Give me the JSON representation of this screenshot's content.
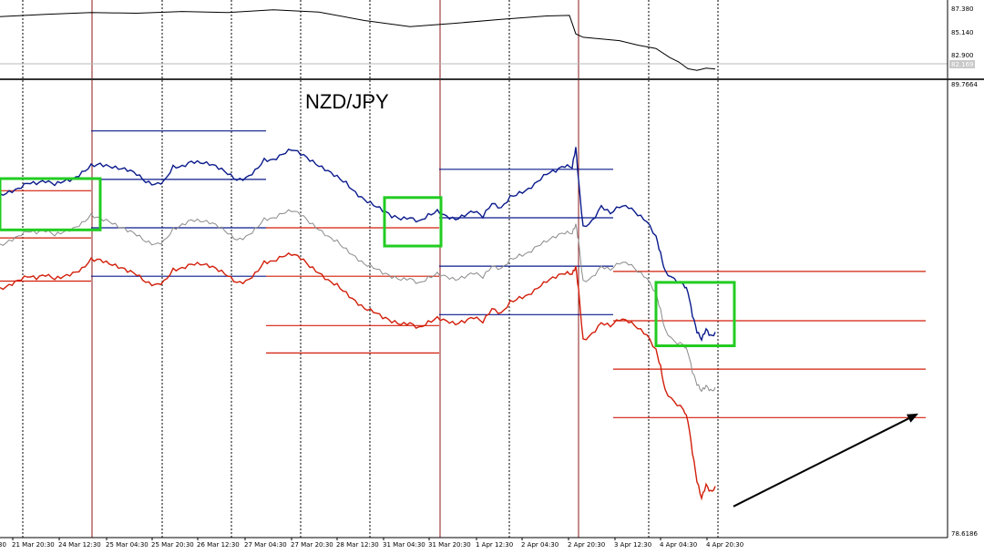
{
  "chart_data": {
    "type": "line",
    "title": "NZD/JPY",
    "colors": {
      "blue": "#0a1a8c",
      "red": "#d21e0a",
      "gray": "#8a8a8a",
      "green_box": "#22cc22",
      "upper_panel_line": "#000000",
      "vline_session": "#8b1a1a"
    },
    "upper_panel": {
      "y_ticks": [
        "87.380",
        "85.140",
        "82.900"
      ],
      "current_label": "82.169",
      "ylim": [
        81.5,
        88.0
      ]
    },
    "main_panel": {
      "y_ticks": [
        "89.7664",
        "78.6186"
      ],
      "ylim": [
        78.6186,
        89.7664
      ]
    },
    "x_tick_labels": [
      "30",
      "21 Mar 20:30",
      "24 Mar 12:30",
      "25 Mar 04:30",
      "25 Mar 20:30",
      "26 Mar 12:30",
      "27 Mar 04:30",
      "27 Mar 20:30",
      "28 Mar 12:30",
      "31 Mar 04:30",
      "31 Mar 20:30",
      "1 Apr 12:30",
      "2 Apr 04:30",
      "2 Apr 20:30",
      "3 Apr 12:30",
      "4 Apr 04:30",
      "4 Apr 20:30"
    ],
    "series": [
      {
        "key": "blue",
        "x": [
          0,
          10,
          20,
          30,
          40,
          50,
          60,
          70,
          80,
          90,
          100,
          110,
          120,
          130,
          140,
          150,
          160,
          170,
          180,
          190,
          200,
          210,
          220,
          230,
          240,
          250,
          260,
          270,
          280,
          290,
          300,
          310,
          320,
          330,
          340,
          350,
          360,
          370,
          380,
          390,
          400,
          410,
          420,
          430,
          440,
          450,
          460,
          470,
          480,
          490,
          500,
          510,
          520,
          530,
          540,
          550,
          560,
          570,
          580,
          590,
          600,
          610,
          620,
          628,
          632,
          635,
          640,
          650,
          660,
          670,
          680,
          690,
          700,
          710,
          720,
          725,
          730,
          740,
          750,
          755,
          760,
          765,
          770,
          775,
          780,
          785
        ],
        "y": [
          87.05,
          87.12,
          87.18,
          87.3,
          87.27,
          87.32,
          87.25,
          87.35,
          87.42,
          87.6,
          87.78,
          87.8,
          87.72,
          87.65,
          87.6,
          87.5,
          87.32,
          87.28,
          87.38,
          87.75,
          87.75,
          87.85,
          87.8,
          87.75,
          87.65,
          87.52,
          87.38,
          87.45,
          87.65,
          87.92,
          87.9,
          88.02,
          88.12,
          88.0,
          87.85,
          87.72,
          87.62,
          87.5,
          87.35,
          87.1,
          86.9,
          86.75,
          86.6,
          86.45,
          86.4,
          86.45,
          86.38,
          86.55,
          86.65,
          86.5,
          86.4,
          86.48,
          86.58,
          86.45,
          86.8,
          86.7,
          87.0,
          87.1,
          87.18,
          87.35,
          87.52,
          87.58,
          87.7,
          87.68,
          88.2,
          87.4,
          86.25,
          86.4,
          86.75,
          86.55,
          86.7,
          86.68,
          86.5,
          86.35,
          86.0,
          85.6,
          85.15,
          84.95,
          84.8,
          84.6,
          84.0,
          83.6,
          83.42,
          83.7,
          83.55,
          83.62
        ]
      },
      {
        "key": "gray",
        "x": [
          0,
          10,
          20,
          30,
          40,
          50,
          60,
          70,
          80,
          90,
          100,
          110,
          120,
          130,
          140,
          150,
          160,
          170,
          180,
          190,
          200,
          210,
          220,
          230,
          240,
          250,
          260,
          270,
          280,
          290,
          300,
          310,
          320,
          330,
          340,
          350,
          360,
          370,
          380,
          390,
          400,
          410,
          420,
          430,
          440,
          450,
          460,
          470,
          480,
          490,
          500,
          510,
          520,
          530,
          540,
          550,
          560,
          570,
          580,
          590,
          600,
          610,
          620,
          628,
          632,
          635,
          640,
          650,
          660,
          670,
          680,
          690,
          700,
          710,
          720,
          725,
          730,
          740,
          750,
          755,
          760,
          765,
          770,
          775,
          780,
          785
        ],
        "y": [
          85.8,
          85.9,
          86.0,
          86.1,
          86.05,
          86.1,
          86.0,
          86.1,
          86.2,
          86.35,
          86.55,
          86.45,
          86.35,
          86.2,
          86.1,
          86.0,
          85.85,
          85.8,
          85.9,
          86.2,
          86.3,
          86.4,
          86.35,
          86.3,
          86.2,
          86.05,
          85.9,
          86.0,
          86.2,
          86.45,
          86.45,
          86.55,
          86.6,
          86.5,
          86.3,
          86.15,
          86.0,
          85.9,
          85.7,
          85.5,
          85.3,
          85.2,
          85.05,
          84.95,
          84.9,
          84.95,
          84.85,
          85.0,
          85.1,
          85.0,
          84.9,
          84.95,
          85.05,
          84.95,
          85.25,
          85.2,
          85.45,
          85.55,
          85.6,
          85.75,
          85.85,
          85.95,
          86.05,
          86.05,
          86.3,
          85.9,
          84.9,
          85.0,
          85.25,
          85.15,
          85.3,
          85.28,
          85.1,
          84.95,
          84.6,
          84.2,
          83.7,
          83.4,
          83.3,
          83.1,
          82.6,
          82.3,
          82.15,
          82.3,
          82.2,
          82.25
        ]
      },
      {
        "key": "red",
        "x": [
          0,
          10,
          20,
          30,
          40,
          50,
          60,
          70,
          80,
          90,
          100,
          110,
          120,
          130,
          140,
          150,
          160,
          170,
          180,
          190,
          200,
          210,
          220,
          230,
          240,
          250,
          260,
          270,
          280,
          290,
          300,
          310,
          320,
          330,
          340,
          350,
          360,
          370,
          380,
          390,
          400,
          410,
          420,
          430,
          440,
          450,
          460,
          470,
          480,
          490,
          500,
          510,
          520,
          530,
          540,
          550,
          560,
          570,
          580,
          590,
          600,
          610,
          620,
          628,
          632,
          635,
          640,
          650,
          660,
          670,
          680,
          690,
          700,
          710,
          720,
          725,
          730,
          740,
          750,
          755,
          760,
          765,
          770,
          775,
          780,
          785
        ],
        "y": [
          84.72,
          84.8,
          84.9,
          84.98,
          84.92,
          85.0,
          84.92,
          85.0,
          85.1,
          85.22,
          85.45,
          85.42,
          85.3,
          85.2,
          85.1,
          85.02,
          84.85,
          84.8,
          84.9,
          85.2,
          85.22,
          85.3,
          85.28,
          85.22,
          85.12,
          85.0,
          84.85,
          84.9,
          85.1,
          85.38,
          85.38,
          85.48,
          85.52,
          85.42,
          85.22,
          85.08,
          84.92,
          84.82,
          84.62,
          84.4,
          84.2,
          84.1,
          83.95,
          83.85,
          83.8,
          83.85,
          83.75,
          83.9,
          84.0,
          83.9,
          83.8,
          83.85,
          83.95,
          83.85,
          84.2,
          84.1,
          84.4,
          84.5,
          84.55,
          84.7,
          84.85,
          84.95,
          85.05,
          85.05,
          85.25,
          84.7,
          83.45,
          83.6,
          83.85,
          83.75,
          83.9,
          83.85,
          83.7,
          83.55,
          83.2,
          82.8,
          82.2,
          81.9,
          81.7,
          81.4,
          80.6,
          79.9,
          79.5,
          79.85,
          79.7,
          79.8
        ]
      }
    ],
    "upper_series": {
      "x": [
        0,
        50,
        100,
        150,
        200,
        250,
        300,
        350,
        400,
        450,
        500,
        550,
        600,
        625,
        632,
        640,
        660,
        680,
        700,
        720,
        735,
        745,
        755,
        765,
        775,
        785
      ],
      "y": [
        86.85,
        87.05,
        87.2,
        87.15,
        87.3,
        87.2,
        87.45,
        87.25,
        86.5,
        85.95,
        86.25,
        86.6,
        86.9,
        86.95,
        85.3,
        85.0,
        84.85,
        84.7,
        84.3,
        84.0,
        83.2,
        82.8,
        82.2,
        82.05,
        82.25,
        82.17
      ]
    },
    "levels": [
      {
        "key": "blue",
        "x0": 100,
        "x1": 292,
        "y": 88.6
      },
      {
        "key": "blue",
        "x0": 100,
        "x1": 292,
        "y": 87.4
      },
      {
        "key": "blue",
        "x0": 100,
        "x1": 292,
        "y": 86.2
      },
      {
        "key": "blue",
        "x0": 100,
        "x1": 292,
        "y": 85.0
      },
      {
        "key": "red",
        "x0": 0,
        "x1": 100,
        "y": 87.12
      },
      {
        "key": "red",
        "x0": 0,
        "x1": 100,
        "y": 84.88
      },
      {
        "key": "red",
        "x0": 0,
        "x1": 100,
        "y": 85.95
      },
      {
        "key": "red",
        "x0": 292,
        "x1": 482,
        "y": 86.2
      },
      {
        "key": "red",
        "x0": 292,
        "x1": 482,
        "y": 85.0
      },
      {
        "key": "red",
        "x0": 292,
        "x1": 482,
        "y": 83.78
      },
      {
        "key": "red",
        "x0": 292,
        "x1": 482,
        "y": 83.1
      },
      {
        "key": "blue",
        "x0": 482,
        "x1": 673,
        "y": 87.65
      },
      {
        "key": "blue",
        "x0": 482,
        "x1": 673,
        "y": 86.45
      },
      {
        "key": "blue",
        "x0": 482,
        "x1": 673,
        "y": 85.25
      },
      {
        "key": "blue",
        "x0": 482,
        "x1": 673,
        "y": 84.05
      },
      {
        "key": "red",
        "x0": 673,
        "x1": 1016,
        "y": 85.12
      },
      {
        "key": "red",
        "x0": 673,
        "x1": 1016,
        "y": 83.9
      },
      {
        "key": "red",
        "x0": 673,
        "x1": 1016,
        "y": 82.7
      },
      {
        "key": "red",
        "x0": 673,
        "x1": 1016,
        "y": 81.5
      }
    ],
    "highlight_boxes": [
      {
        "x0": 0,
        "x1": 110,
        "y0": 86.15,
        "y1": 87.42
      },
      {
        "x0": 422,
        "x1": 484,
        "y0": 85.75,
        "y1": 86.95
      },
      {
        "x0": 720,
        "x1": 806,
        "y0": 83.28,
        "y1": 84.85
      }
    ],
    "arrow": {
      "x0": 805,
      "x1": 1008,
      "y0": 79.3,
      "y1": 81.6
    }
  }
}
